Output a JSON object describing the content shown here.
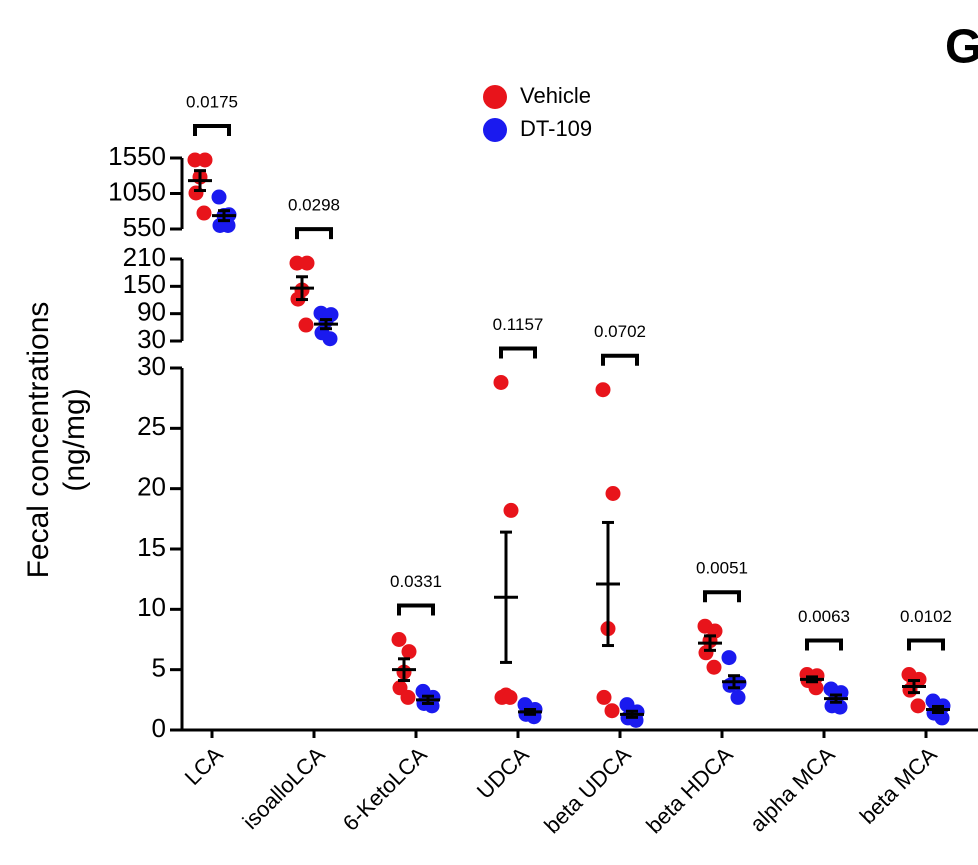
{
  "chart_data": {
    "type": "strip",
    "panel_label": "G",
    "ylabel": [
      "Fecal concentrations",
      "(ng/mg)"
    ],
    "categories": [
      "LCA",
      "isoalloLCA",
      "6-KetoLCA",
      "UDCA",
      "beta UDCA",
      "beta HDCA",
      "alpha MCA",
      "beta MCA"
    ],
    "series": [
      {
        "name": "Vehicle",
        "color": "#e8141b",
        "values": [
          [
            1522,
            1522,
            1282,
            1057,
            775
          ],
          [
            201,
            201,
            142,
            122,
            65
          ],
          [
            7.5,
            6.5,
            4.8,
            3.5,
            2.7
          ],
          [
            28.8,
            18.2,
            2.9,
            2.7,
            2.7
          ],
          [
            28.2,
            19.6,
            8.4,
            2.7,
            1.6
          ],
          [
            8.6,
            8.2,
            7.4,
            6.4,
            5.2
          ],
          [
            4.6,
            4.5,
            4.2,
            4.1,
            3.5
          ],
          [
            4.6,
            4.2,
            4.0,
            3.3,
            2.0
          ]
        ],
        "mean": [
          1232,
          146,
          5.0,
          11.0,
          12.1,
          7.2,
          4.2,
          3.6
        ],
        "error": [
          140,
          25,
          0.9,
          5.4,
          5.1,
          0.6,
          0.2,
          0.5
        ]
      },
      {
        "name": "DT-109",
        "color": "#1a1aef",
        "values": [
          [
            1000,
            750,
            740,
            600,
            600
          ],
          [
            91,
            88,
            74,
            48,
            35
          ],
          [
            3.2,
            2.7,
            2.5,
            2.2,
            2.0
          ],
          [
            2.1,
            1.7,
            1.5,
            1.3,
            1.1
          ],
          [
            2.1,
            1.5,
            1.3,
            1.0,
            0.8
          ],
          [
            6.0,
            3.9,
            3.9,
            3.7,
            2.7
          ],
          [
            3.4,
            3.1,
            2.7,
            2.0,
            1.9
          ],
          [
            2.4,
            2.0,
            1.5,
            1.4,
            1.0
          ]
        ],
        "mean": [
          738,
          67,
          2.5,
          1.5,
          1.3,
          4.0,
          2.6,
          1.7
        ],
        "error": [
          70,
          10,
          0.3,
          0.2,
          0.25,
          0.5,
          0.3,
          0.25
        ]
      }
    ],
    "p_values": [
      "0.0175",
      "0.0298",
      "0.0331",
      "0.1157",
      "0.0702",
      "0.0051",
      "0.0063",
      "0.0102"
    ],
    "y_segments": [
      {
        "ylim": [
          550,
          1550
        ],
        "yticks": [
          550,
          1050,
          1550
        ]
      },
      {
        "ylim": [
          30,
          210
        ],
        "yticks": [
          30,
          90,
          150,
          210
        ]
      },
      {
        "ylim": [
          0,
          30
        ],
        "yticks": [
          0,
          5,
          10,
          15,
          20,
          25,
          30
        ]
      }
    ]
  }
}
